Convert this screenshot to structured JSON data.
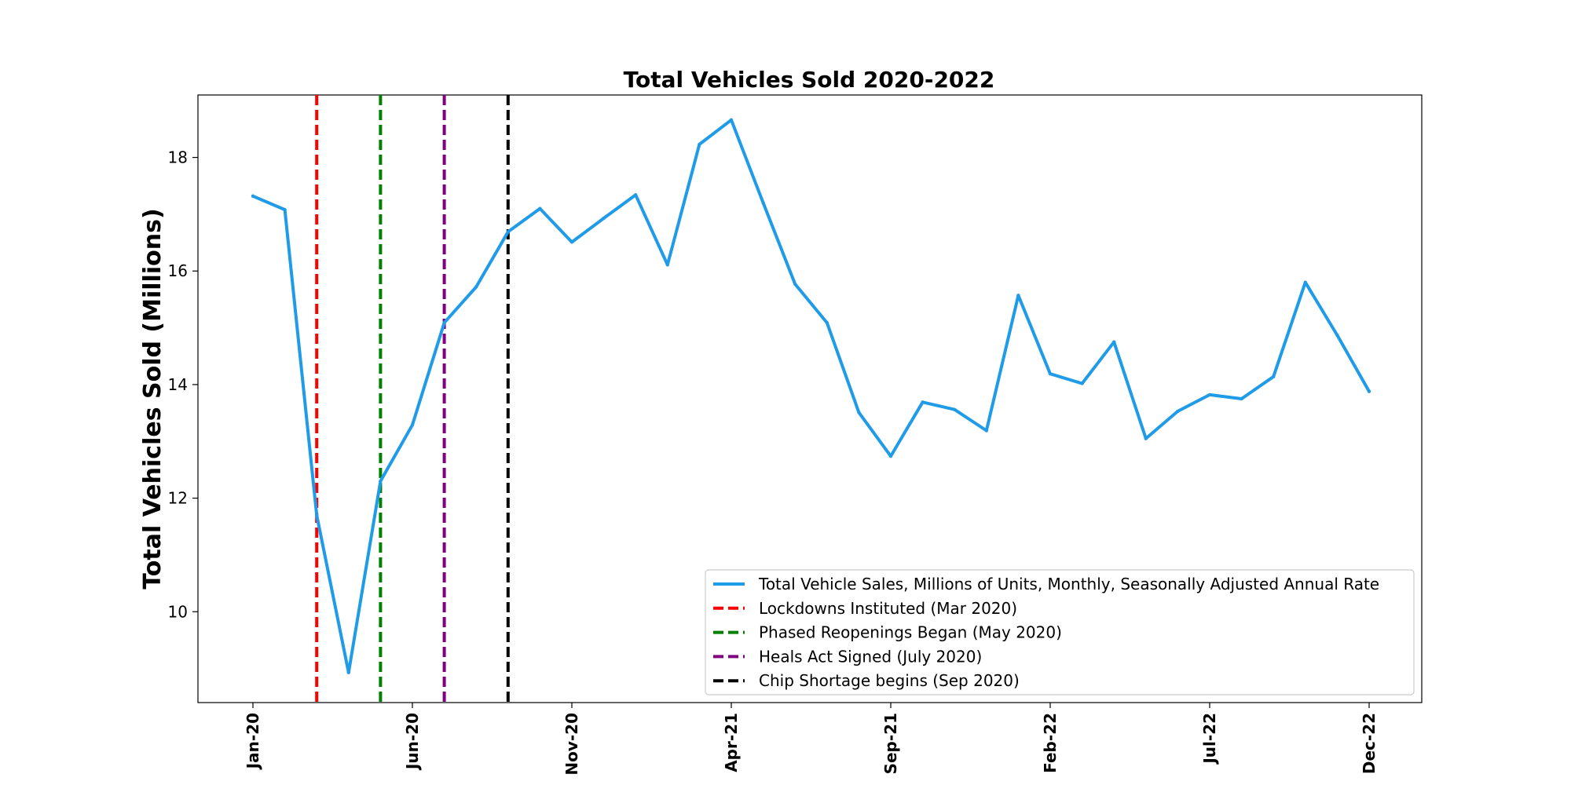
{
  "chart_data": {
    "type": "line",
    "title": "Total Vehicles Sold 2020-2022",
    "ylabel": "Total Vehicles Sold (Millions)",
    "xlabel": "",
    "ylim": [
      8.4,
      19.1
    ],
    "yticks": [
      10,
      12,
      14,
      16,
      18
    ],
    "x": [
      "Jan-20",
      "Feb-20",
      "Mar-20",
      "Apr-20",
      "May-20",
      "Jun-20",
      "Jul-20",
      "Aug-20",
      "Sep-20",
      "Oct-20",
      "Nov-20",
      "Dec-20",
      "Jan-21",
      "Feb-21",
      "Mar-21",
      "Apr-21",
      "May-21",
      "Jun-21",
      "Jul-21",
      "Aug-21",
      "Sep-21",
      "Oct-21",
      "Nov-21",
      "Dec-21",
      "Jan-22",
      "Feb-22",
      "Mar-22",
      "Apr-22",
      "May-22",
      "Jun-22",
      "Jul-22",
      "Aug-22",
      "Sep-22",
      "Oct-22",
      "Nov-22",
      "Dec-22"
    ],
    "xticks": [
      "Jan-20",
      "Jun-20",
      "Nov-20",
      "Apr-21",
      "Sep-21",
      "Feb-22",
      "Jul-22",
      "Dec-22"
    ],
    "series": [
      {
        "name": "Total Vehicle Sales, Millions of Units, Monthly, Seasonally Adjusted Annual Rate",
        "color": "#1f9be8",
        "style": "solid",
        "values": [
          17.32,
          17.08,
          11.7,
          8.93,
          12.3,
          13.29,
          15.09,
          15.72,
          16.69,
          17.1,
          16.51,
          16.93,
          17.34,
          16.11,
          18.23,
          18.66,
          17.2,
          15.77,
          15.09,
          13.51,
          12.74,
          13.69,
          13.56,
          13.19,
          15.57,
          14.19,
          14.02,
          14.75,
          13.05,
          13.53,
          13.82,
          13.75,
          14.14,
          15.8,
          14.87,
          13.88
        ]
      }
    ],
    "vlines": [
      {
        "x": "Mar-20",
        "label": "Lockdowns Instituted (Mar 2020)",
        "color": "#ff0000",
        "style": "dashed"
      },
      {
        "x": "May-20",
        "label": "Phased Reopenings Began (May 2020)",
        "color": "#008000",
        "style": "dashed"
      },
      {
        "x": "Jul-20",
        "label": "Heals Act Signed (July 2020)",
        "color": "#800080",
        "style": "dashed"
      },
      {
        "x": "Sep-20",
        "label": "Chip Shortage begins (Sep 2020)",
        "color": "#000000",
        "style": "dashed"
      }
    ],
    "legend_position": "lower-right",
    "grid": false
  }
}
